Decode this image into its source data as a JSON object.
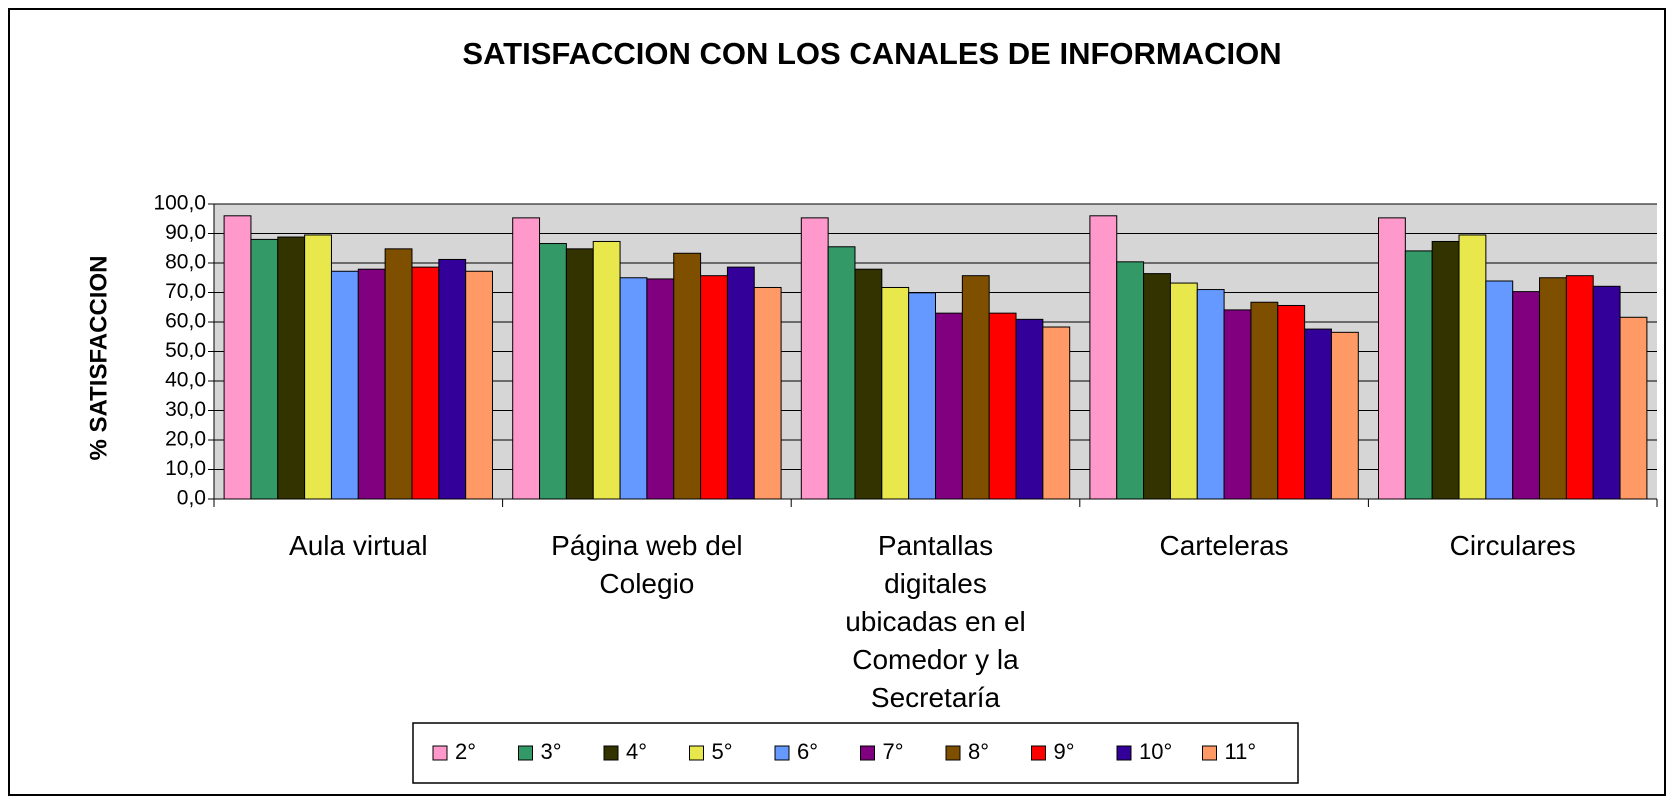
{
  "chart_data": {
    "type": "bar",
    "title": "SATISFACCION CON LOS CANALES DE INFORMACION",
    "y_label": "% SATISFACCION",
    "categories": [
      "Aula virtual",
      "Página web del Colegio",
      "Pantallas digitales ubicadas en el Comedor y la Secretaría",
      "Carteleras",
      "Circulares"
    ],
    "series": [
      {
        "name": "2°",
        "color": "#ff99cc",
        "values": [
          96.0,
          95.3,
          95.3,
          96.0,
          95.3
        ]
      },
      {
        "name": "3°",
        "color": "#339966",
        "values": [
          88.0,
          86.6,
          85.5,
          80.4,
          84.1
        ]
      },
      {
        "name": "4°",
        "color": "#333300",
        "values": [
          88.8,
          84.8,
          77.9,
          76.4,
          87.3
        ]
      },
      {
        "name": "5°",
        "color": "#e8e84c",
        "values": [
          89.5,
          87.3,
          71.7,
          73.2,
          89.5
        ]
      },
      {
        "name": "6°",
        "color": "#6699ff",
        "values": [
          77.2,
          75.0,
          69.9,
          71.0,
          73.9
        ]
      },
      {
        "name": "7°",
        "color": "#800080",
        "values": [
          77.9,
          74.6,
          63.0,
          64.1,
          70.3
        ]
      },
      {
        "name": "8°",
        "color": "#7f4f00",
        "values": [
          84.8,
          83.3,
          75.7,
          66.7,
          75.0
        ]
      },
      {
        "name": "9°",
        "color": "#ff0000",
        "values": [
          78.6,
          75.7,
          63.0,
          65.6,
          75.7
        ]
      },
      {
        "name": "10°",
        "color": "#330099",
        "values": [
          81.2,
          78.6,
          60.9,
          57.6,
          72.1
        ]
      },
      {
        "name": "11°",
        "color": "#ff9966",
        "values": [
          77.2,
          71.7,
          58.3,
          56.5,
          61.6
        ]
      }
    ],
    "ylim": [
      0,
      100
    ],
    "yticks": [
      {
        "value": 0,
        "label": "0,0"
      },
      {
        "value": 10,
        "label": "10,0"
      },
      {
        "value": 20,
        "label": "20,0"
      },
      {
        "value": 30,
        "label": "30,0"
      },
      {
        "value": 40,
        "label": "40,0"
      },
      {
        "value": 50,
        "label": "50,0"
      },
      {
        "value": 60,
        "label": "60,0"
      },
      {
        "value": 70,
        "label": "70,0"
      },
      {
        "value": 80,
        "label": "80,0"
      },
      {
        "value": 90,
        "label": "90,0"
      },
      {
        "value": 100,
        "label": "100,0"
      }
    ],
    "grid": true,
    "legend": "bottom"
  }
}
